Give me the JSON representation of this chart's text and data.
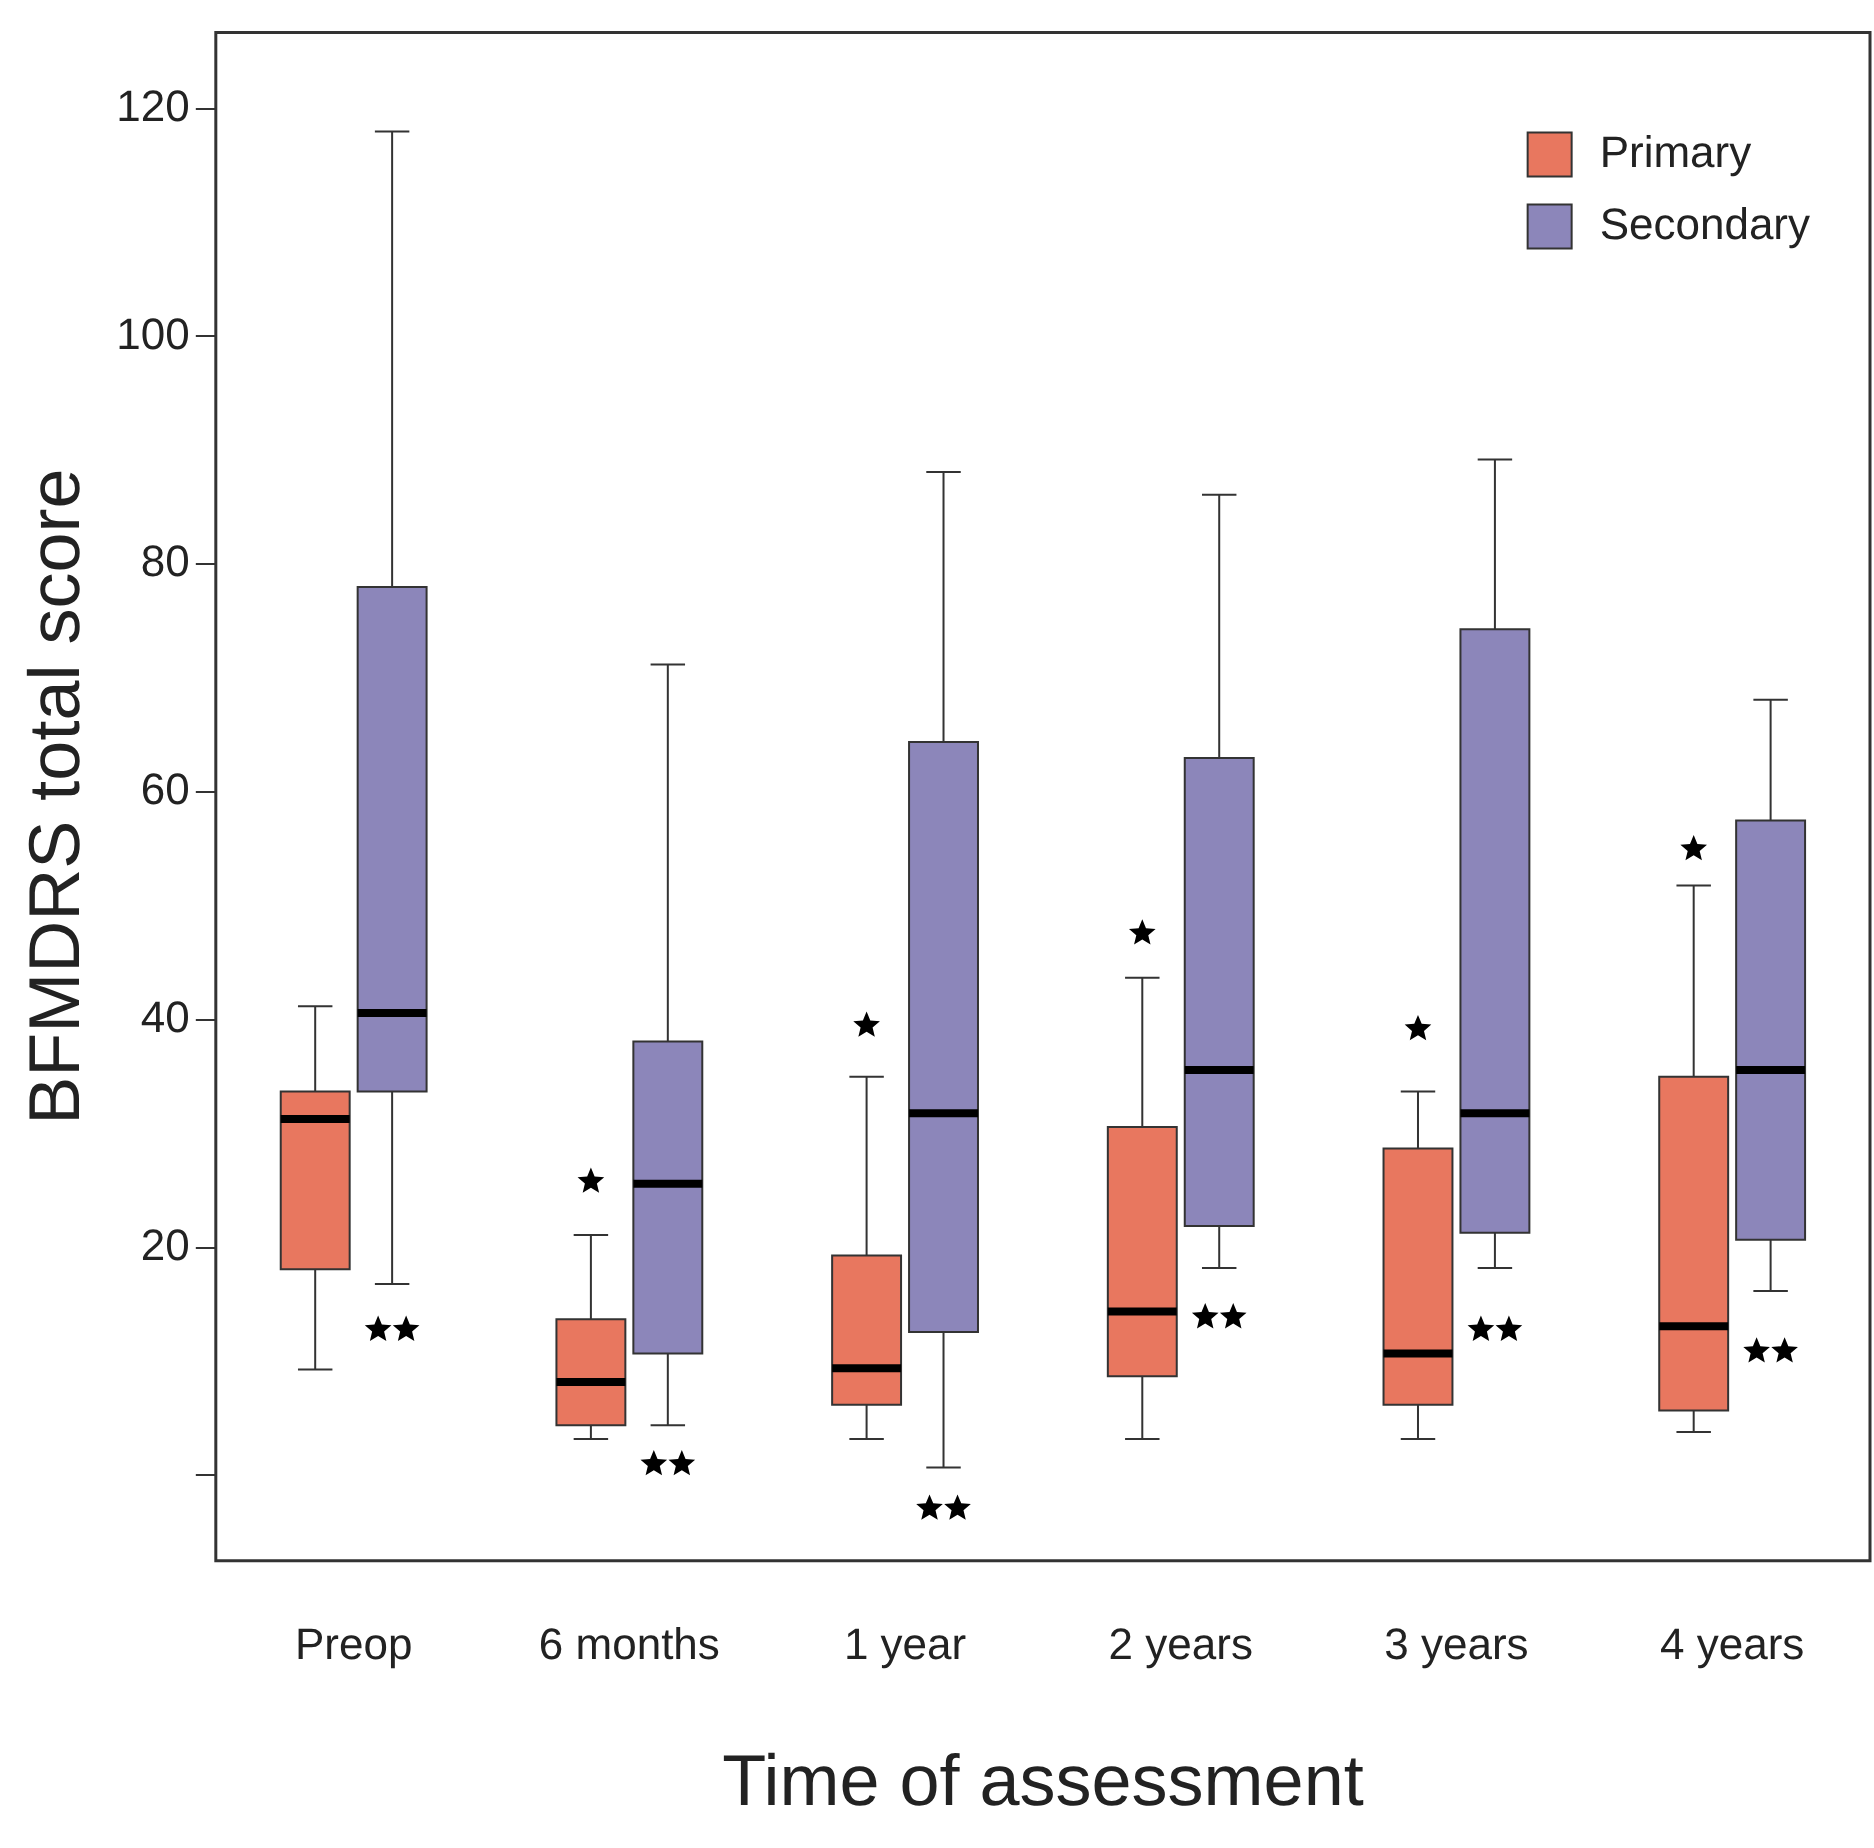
{
  "chart_data": {
    "type": "box",
    "xlabel": "Time of assessment",
    "ylabel": "BFMDRS total score",
    "categories": [
      "Preop",
      "6 months",
      "1 year",
      "2 years",
      "3 years",
      "4 years"
    ],
    "series": [
      {
        "name": "Primary",
        "color": "#e8775f",
        "boxes": [
          {
            "low": 9.3,
            "q1": 18.1,
            "median": 31.3,
            "q3": 33.7,
            "high": 41.2
          },
          {
            "low": 3.2,
            "q1": 4.4,
            "median": 8.2,
            "q3": 13.7,
            "high": 21.1,
            "outliers": [
              25.8
            ]
          },
          {
            "low": 3.2,
            "q1": 6.2,
            "median": 9.4,
            "q3": 19.3,
            "high": 35,
            "outliers": [
              39.5
            ]
          },
          {
            "low": 3.2,
            "q1": 8.7,
            "median": 14.4,
            "q3": 30.6,
            "high": 43.7,
            "outliers": [
              47.6
            ]
          },
          {
            "low": 3.2,
            "q1": 6.2,
            "median": 10.7,
            "q3": 28.7,
            "high": 33.7,
            "outliers": [
              39.2
            ]
          },
          {
            "low": 3.8,
            "q1": 5.7,
            "median": 13.1,
            "q3": 35,
            "high": 51.8,
            "outliers": [
              55
            ]
          }
        ]
      },
      {
        "name": "Secondary",
        "color": "#8c86ba",
        "boxes": [
          {
            "low": 16.8,
            "q1": 33.7,
            "median": 40.6,
            "q3": 78,
            "high": 118,
            "outliers": [
              12.8,
              12.8
            ]
          },
          {
            "low": 4.4,
            "q1": 10.7,
            "median": 25.6,
            "q3": 38.1,
            "high": 71.2,
            "outliers": [
              1,
              1
            ]
          },
          {
            "low": 0.7,
            "q1": 12.6,
            "median": 31.8,
            "q3": 64.4,
            "high": 88.1,
            "outliers": [
              -2.9,
              -2.9
            ]
          },
          {
            "low": 18.2,
            "q1": 21.9,
            "median": 35.6,
            "q3": 63,
            "high": 86.1,
            "outliers": [
              13.9,
              13.9
            ]
          },
          {
            "low": 18.2,
            "q1": 21.3,
            "median": 31.8,
            "q3": 74.3,
            "high": 89.2,
            "outliers": [
              12.8,
              12.8
            ]
          },
          {
            "low": 16.2,
            "q1": 20.7,
            "median": 35.6,
            "q3": 57.5,
            "high": 68.1,
            "outliers": [
              10.9,
              10.9
            ]
          }
        ]
      }
    ],
    "ylim": [
      -7.5,
      126.7
    ],
    "yticks": [
      {
        "value": 0,
        "label": null
      },
      20,
      40,
      60,
      80,
      100,
      120
    ],
    "grid": false,
    "legend": "top right",
    "marker": "star"
  }
}
